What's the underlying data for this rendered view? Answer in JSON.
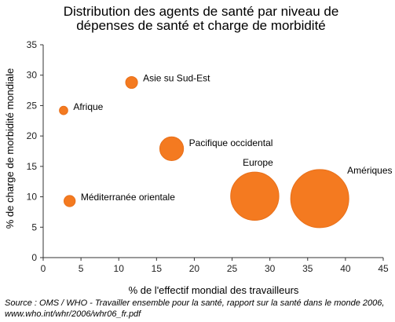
{
  "chart_data": {
    "type": "scatter",
    "title": [
      "Distribution des agents de santé par niveau de",
      "dépenses de santé et charge de morbidité"
    ],
    "xlabel": "% de l'effectif mondial des travailleurs",
    "ylabel": "% de charge de morbidité mondiale",
    "xlim": [
      0,
      45
    ],
    "ylim": [
      0,
      35
    ],
    "x_ticks": [
      0,
      5,
      10,
      15,
      20,
      25,
      30,
      35,
      40,
      45
    ],
    "y_ticks": [
      0,
      5,
      10,
      15,
      20,
      25,
      30,
      35
    ],
    "grid": false,
    "bubble_color": "#f47a20",
    "bubble_edge_color": "#e8701a",
    "series": [
      {
        "points": [
          {
            "label": "Afrique",
            "x": 2.7,
            "y": 24.2,
            "size": 1
          },
          {
            "label": "Asie su Sud-Est",
            "x": 11.7,
            "y": 28.8,
            "size": 2
          },
          {
            "label": "Pacifique occidental",
            "x": 17.0,
            "y": 17.9,
            "size": 8
          },
          {
            "label": "Méditerranée orientale",
            "x": 3.5,
            "y": 9.3,
            "size": 1.8
          },
          {
            "label": "Europe",
            "x": 28.0,
            "y": 10.1,
            "size": 33
          },
          {
            "label": "Amériques",
            "x": 36.6,
            "y": 9.7,
            "size": 48
          }
        ]
      }
    ]
  },
  "source": {
    "line1": "Source : OMS / WHO - Travailler ensemble pour la santé, rapport sur la santé dans le monde 2006,",
    "line2": "www.who.int/whr/2006/whr06_fr.pdf"
  }
}
